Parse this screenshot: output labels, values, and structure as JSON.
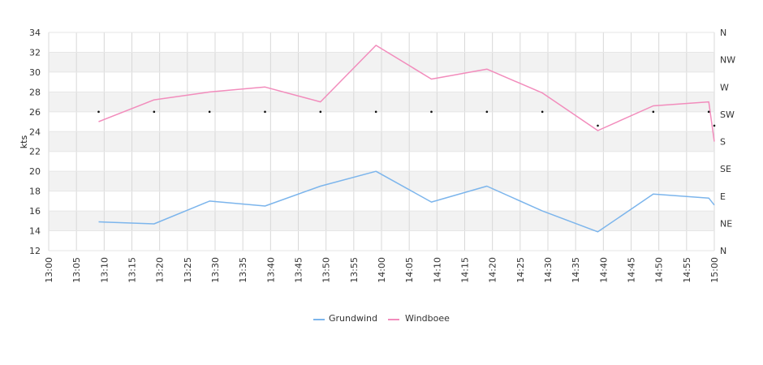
{
  "chart_data": {
    "type": "line",
    "ylabel": "kts",
    "ylim": [
      12,
      34
    ],
    "y_ticks": [
      "12",
      "14",
      "16",
      "18",
      "20",
      "22",
      "24",
      "26",
      "28",
      "30",
      "32",
      "34"
    ],
    "right_ticks": [
      "N",
      "NE",
      "E",
      "SE",
      "S",
      "SW",
      "W",
      "NW",
      "N"
    ],
    "x_ticks": [
      "13:00",
      "13:05",
      "13:10",
      "13:15",
      "13:20",
      "13:25",
      "13:30",
      "13:35",
      "13:40",
      "13:45",
      "13:50",
      "13:55",
      "14:00",
      "14:05",
      "14:10",
      "14:15",
      "14:20",
      "14:25",
      "14:30",
      "14:35",
      "14:40",
      "14:45",
      "14:50",
      "14:55",
      "15:00"
    ],
    "x": [
      "13:09",
      "13:19",
      "13:29",
      "13:39",
      "13:49",
      "13:59",
      "14:09",
      "14:19",
      "14:29",
      "14:39",
      "14:49",
      "14:59",
      "15:00"
    ],
    "series": [
      {
        "name": "Grundwind",
        "color": "#7cb5ec",
        "values": [
          14.9,
          14.7,
          17.0,
          16.5,
          18.5,
          20.0,
          16.9,
          18.5,
          16.0,
          13.9,
          17.7,
          17.3,
          16.6
        ]
      },
      {
        "name": "Windboee",
        "color": "#f28cbc",
        "values": [
          25.0,
          27.2,
          28.0,
          28.5,
          27.0,
          32.7,
          29.3,
          30.3,
          27.9,
          24.1,
          26.6,
          27.0,
          23.0
        ]
      }
    ],
    "direction_dots": {
      "x": [
        "13:09",
        "13:19",
        "13:29",
        "13:39",
        "13:49",
        "13:59",
        "14:09",
        "14:19",
        "14:29",
        "14:39",
        "14:49",
        "14:59",
        "15:00"
      ],
      "values": [
        26.0,
        26.0,
        26.0,
        26.0,
        26.0,
        26.0,
        26.0,
        26.0,
        26.0,
        24.6,
        26.0,
        26.0,
        24.6
      ]
    },
    "grid": true,
    "legend_position": "bottom-center"
  },
  "legend": {
    "grundwind": "Grundwind",
    "windboee": "Windboee"
  }
}
